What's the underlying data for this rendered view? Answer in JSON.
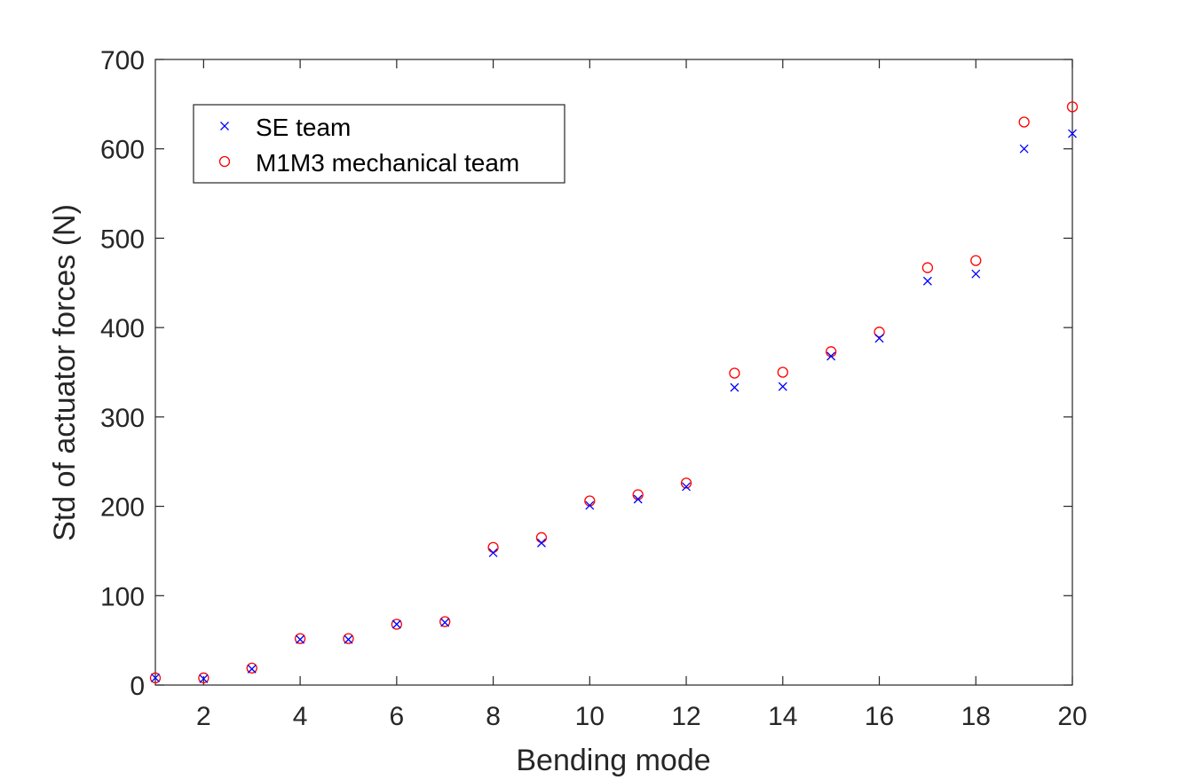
{
  "chart_data": {
    "type": "scatter",
    "xlabel": "Bending mode",
    "ylabel": "Std of actuator forces (N)",
    "xlim": [
      1,
      20
    ],
    "ylim": [
      0,
      700
    ],
    "xticks": [
      2,
      4,
      6,
      8,
      10,
      12,
      14,
      16,
      18,
      20
    ],
    "yticks": [
      0,
      100,
      200,
      300,
      400,
      500,
      600,
      700
    ],
    "grid": false,
    "legend_position": "top-left",
    "x": [
      1,
      2,
      3,
      4,
      5,
      6,
      7,
      8,
      9,
      10,
      11,
      12,
      13,
      14,
      15,
      16,
      17,
      18,
      19,
      20
    ],
    "series": [
      {
        "name": "SE team",
        "marker": "x",
        "color": "#0000ff",
        "values": [
          8,
          7,
          18,
          51,
          51,
          68,
          70,
          148,
          159,
          201,
          208,
          222,
          333,
          334,
          368,
          388,
          452,
          460,
          600,
          617
        ]
      },
      {
        "name": "M1M3 mechanical team",
        "marker": "o",
        "color": "#ff0000",
        "values": [
          8,
          8,
          19,
          52,
          52,
          68,
          71,
          154,
          165,
          206,
          213,
          226,
          349,
          350,
          373,
          395,
          467,
          475,
          630,
          647
        ]
      }
    ]
  }
}
